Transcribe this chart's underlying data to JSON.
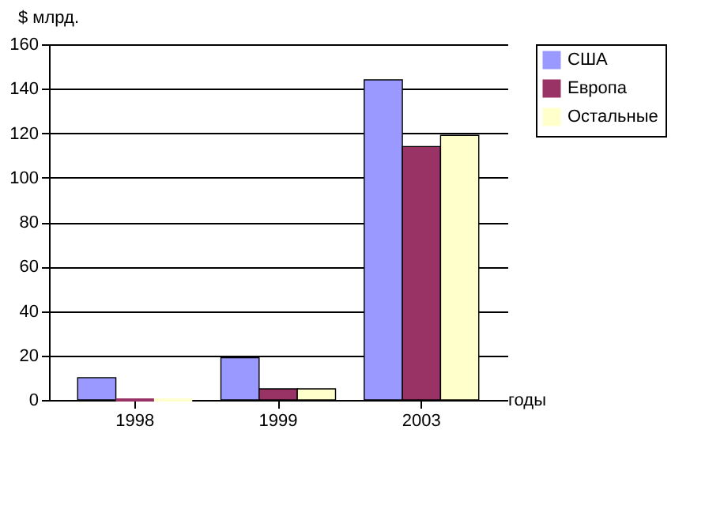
{
  "chart_data": {
    "type": "bar",
    "ylabel": "$ млрд.",
    "xlabel": "годы",
    "categories": [
      "1998",
      "1999",
      "2003"
    ],
    "series": [
      {
        "name": "США",
        "color": "#9999ff",
        "values": [
          10,
          19,
          144
        ]
      },
      {
        "name": "Европа",
        "color": "#993366",
        "values": [
          0,
          5,
          114
        ]
      },
      {
        "name": "Остальные",
        "color": "#ffffcc",
        "values": [
          0,
          5,
          119
        ]
      }
    ],
    "ylim": [
      0,
      160
    ],
    "yticks": [
      0,
      20,
      40,
      60,
      80,
      100,
      120,
      140,
      160
    ],
    "grid": "y",
    "legend": "top right"
  }
}
